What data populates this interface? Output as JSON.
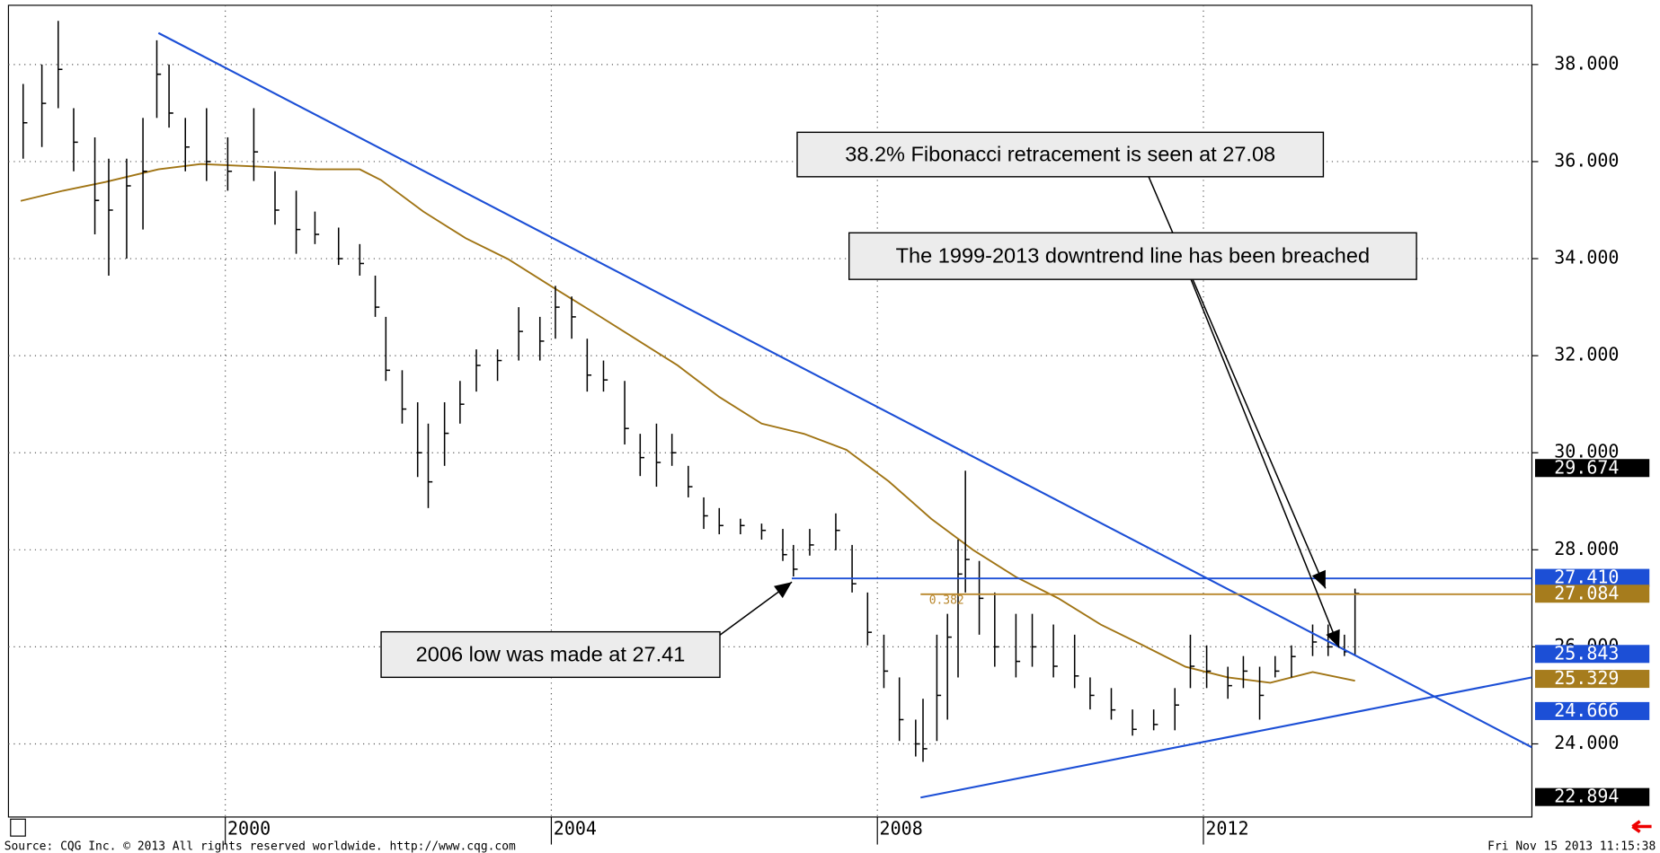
{
  "chart_data": {
    "type": "ohlc",
    "xlim": [
      1997.34,
      2016.03
    ],
    "xticks": [
      2000,
      2004,
      2008,
      2012
    ],
    "ylim": [
      22.493,
      39.221
    ],
    "yticks": [
      {
        "value": 24,
        "label": "24.000"
      },
      {
        "value": 26,
        "label": "26.000"
      },
      {
        "value": 28,
        "label": "28.000"
      },
      {
        "value": 30,
        "label": "30.000"
      },
      {
        "value": 32,
        "label": "32.000"
      },
      {
        "value": 34,
        "label": "34.000"
      },
      {
        "value": 36,
        "label": "36.000"
      },
      {
        "value": 38,
        "label": "38.000"
      }
    ],
    "grid": true,
    "bar_color": "#000000",
    "bars": {
      "x": [
        1997.52,
        1997.75,
        1997.95,
        1998.14,
        1998.4,
        1998.57,
        1998.79,
        1998.99,
        1999.16,
        1999.31,
        1999.51,
        1999.77,
        2000.03,
        2000.35,
        2000.61,
        2000.87,
        2001.1,
        2001.39,
        2001.65,
        2001.84,
        2001.97,
        2002.17,
        2002.36,
        2002.49,
        2002.69,
        2002.88,
        2003.08,
        2003.34,
        2003.6,
        2003.86,
        2004.05,
        2004.25,
        2004.44,
        2004.64,
        2004.9,
        2005.09,
        2005.29,
        2005.48,
        2005.68,
        2005.87,
        2006.06,
        2006.32,
        2006.58,
        2006.84,
        2006.97,
        2007.17,
        2007.49,
        2007.69,
        2007.88,
        2008.08,
        2008.27,
        2008.47,
        2008.56,
        2008.73,
        2008.86,
        2008.99,
        2009.08,
        2009.25,
        2009.44,
        2009.7,
        2009.9,
        2010.16,
        2010.42,
        2010.61,
        2010.87,
        2011.13,
        2011.39,
        2011.65,
        2011.84,
        2012.04,
        2012.3,
        2012.49,
        2012.69,
        2012.88,
        2013.08,
        2013.34,
        2013.53,
        2013.73,
        2013.86
      ],
      "high": [
        37.6,
        38.0,
        38.9,
        37.1,
        36.5,
        36.06,
        36.06,
        36.9,
        38.5,
        38.0,
        36.9,
        37.1,
        36.5,
        37.1,
        35.8,
        35.4,
        34.97,
        34.64,
        34.3,
        33.65,
        32.8,
        31.7,
        31.04,
        30.6,
        31.04,
        31.48,
        32.13,
        32.13,
        33.0,
        32.8,
        33.44,
        33.22,
        32.35,
        31.9,
        31.48,
        30.39,
        30.6,
        30.39,
        29.73,
        29.08,
        28.86,
        28.64,
        28.54,
        28.43,
        28.1,
        28.43,
        28.75,
        28.1,
        27.12,
        26.25,
        25.37,
        24.5,
        24.93,
        26.25,
        26.68,
        28.21,
        29.63,
        27.77,
        27.12,
        26.68,
        26.68,
        26.46,
        26.25,
        25.37,
        25.15,
        24.71,
        24.71,
        25.15,
        26.25,
        26.03,
        25.59,
        25.81,
        25.59,
        25.81,
        26.03,
        26.46,
        26.46,
        26.25,
        27.2
      ],
      "low": [
        36.06,
        36.3,
        37.1,
        35.8,
        34.5,
        33.65,
        34.0,
        34.6,
        36.9,
        36.7,
        35.8,
        35.6,
        35.4,
        35.6,
        34.7,
        34.1,
        34.3,
        33.87,
        33.65,
        32.8,
        31.48,
        30.6,
        29.5,
        28.86,
        29.73,
        30.6,
        31.26,
        31.48,
        31.9,
        31.9,
        32.35,
        32.35,
        31.26,
        31.26,
        30.17,
        29.52,
        29.3,
        29.73,
        29.08,
        28.43,
        28.32,
        28.32,
        28.21,
        27.77,
        27.45,
        27.88,
        27.99,
        27.12,
        26.03,
        25.15,
        24.06,
        23.74,
        23.63,
        24.06,
        24.5,
        25.37,
        27.12,
        26.25,
        25.59,
        25.37,
        25.59,
        25.37,
        25.15,
        24.71,
        24.5,
        24.17,
        24.28,
        24.28,
        25.15,
        25.15,
        24.93,
        25.15,
        24.5,
        25.37,
        25.37,
        25.81,
        25.81,
        25.81,
        25.81
      ],
      "close": [
        36.8,
        37.2,
        37.9,
        36.4,
        35.2,
        35.0,
        35.5,
        35.8,
        37.8,
        37.0,
        36.3,
        36.0,
        35.8,
        36.2,
        35.0,
        34.6,
        34.5,
        34.0,
        33.9,
        33.0,
        31.7,
        30.9,
        30.0,
        29.4,
        30.4,
        31.0,
        31.8,
        31.9,
        32.5,
        32.3,
        33.0,
        32.8,
        31.6,
        31.5,
        30.5,
        29.9,
        29.8,
        30.0,
        29.3,
        28.7,
        28.5,
        28.5,
        28.4,
        27.9,
        27.6,
        28.1,
        28.4,
        27.3,
        26.3,
        25.5,
        24.5,
        24.0,
        23.9,
        25.0,
        26.2,
        27.5,
        27.8,
        27.0,
        26.0,
        25.7,
        26.0,
        25.6,
        25.4,
        25.0,
        24.7,
        24.3,
        24.4,
        24.8,
        25.6,
        25.5,
        25.2,
        25.5,
        25.0,
        25.5,
        25.8,
        26.1,
        26.0,
        25.9,
        27.1
      ]
    },
    "moving_average": {
      "color": "#a07414",
      "x": [
        1997.49,
        1998.01,
        1998.53,
        1999.18,
        1999.7,
        2000.35,
        2001.13,
        2001.65,
        2001.91,
        2002.43,
        2002.95,
        2003.47,
        2003.99,
        2004.51,
        2005.03,
        2005.55,
        2006.06,
        2006.58,
        2007.1,
        2007.62,
        2008.14,
        2008.66,
        2009.18,
        2009.7,
        2010.22,
        2010.74,
        2011.26,
        2011.78,
        2012.3,
        2012.82,
        2013.34,
        2013.86
      ],
      "values": [
        35.19,
        35.4,
        35.58,
        35.84,
        35.95,
        35.9,
        35.84,
        35.84,
        35.62,
        34.97,
        34.42,
        33.99,
        33.44,
        32.9,
        32.35,
        31.8,
        31.15,
        30.6,
        30.39,
        30.06,
        29.41,
        28.64,
        27.99,
        27.44,
        27.0,
        26.46,
        26.03,
        25.59,
        25.37,
        25.26,
        25.48,
        25.3
      ]
    },
    "trendlines": [
      {
        "color": "#1c4fd6",
        "x": [
          1999.18,
          2016.03
        ],
        "values": [
          38.65,
          23.93
        ]
      },
      {
        "color": "#1c4fd6",
        "x": [
          2008.53,
          2016.03
        ],
        "values": [
          22.894,
          25.37
        ]
      }
    ],
    "horizontal_lines": [
      {
        "color": "#1c4fd6",
        "value": 27.41,
        "x_start": 2006.95
      },
      {
        "color": "#b8862b",
        "value": 27.084,
        "x_start": 2008.53,
        "label": "0.382"
      }
    ],
    "price_markers": [
      {
        "value": 29.674,
        "label": "29.674",
        "color": "#000000"
      },
      {
        "value": 27.41,
        "label": "27.410",
        "color": "#1c4fd6"
      },
      {
        "value": 27.084,
        "label": "27.084",
        "color": "#a67c1d"
      },
      {
        "value": 25.843,
        "label": "25.843",
        "color": "#1c4fd6"
      },
      {
        "value": 25.329,
        "label": "25.329",
        "color": "#a67c1d"
      },
      {
        "value": 24.666,
        "label": "24.666",
        "color": "#1c4fd6"
      },
      {
        "value": 22.894,
        "label": "22.894",
        "color": "#000000"
      }
    ],
    "annotations": [
      {
        "text": "38.2% Fibonacci retracement is seen at 27.08"
      },
      {
        "text": "The 1999-2013 downtrend line has been breached"
      },
      {
        "text": "2006 low was made at 27.41"
      }
    ],
    "source": "Source: CQG Inc. © 2013 All rights reserved worldwide. http://www.cqg.com",
    "timestamp": "Fri Nov 15 2013 11:15:38"
  }
}
